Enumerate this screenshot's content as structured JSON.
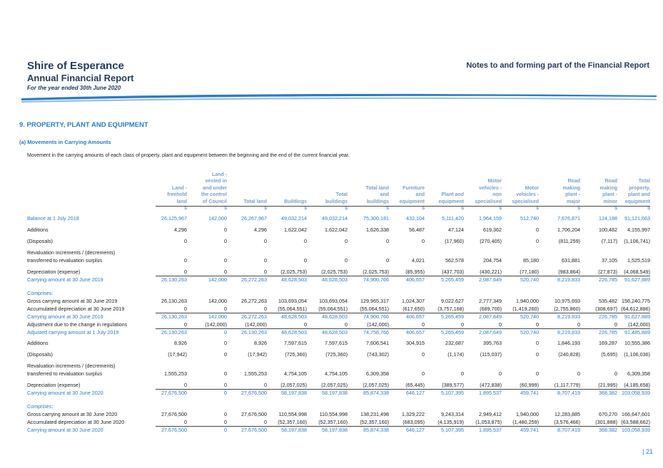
{
  "header": {
    "org": "Shire of Esperance",
    "report": "Annual Financial Report",
    "period": "For the year ended 30th June 2020",
    "notes_title": "Notes to and forming part of the Financial Report"
  },
  "section_title": "9. PROPERTY, PLANT AND EQUIPMENT",
  "subsection_title": "(a) Movements in Carrying Amounts",
  "intro_text": "Movement in the carrying amounts of each class of property, plant and equipment between the beginning and the end of the current financial year.",
  "page_number": "| 21",
  "table": {
    "columns": [
      [
        "Land -",
        "freehold",
        "land"
      ],
      [
        "Land -",
        "vested in",
        "and under",
        "the control",
        "of Council"
      ],
      [
        "Total land"
      ],
      [
        "Buildings"
      ],
      [
        "Total",
        "buildings"
      ],
      [
        "Total land",
        "and",
        "buildings"
      ],
      [
        "Furniture",
        "and",
        "equipment"
      ],
      [
        "Plant and",
        "equipment"
      ],
      [
        "Motor",
        "vehicles -",
        "non",
        "specialised"
      ],
      [
        "Motor",
        "vehicles -",
        "specialised"
      ],
      [
        "Road",
        "making",
        "plant -",
        "major"
      ],
      [
        "Road",
        "making",
        "plant -",
        "minor"
      ],
      [
        "Total",
        "property,",
        "plant and",
        "equipment"
      ]
    ],
    "currency": "$",
    "rows": [
      {
        "label": "Balance at 1 July 2018",
        "style": "blue",
        "values": [
          "26,125,967",
          "142,000",
          "26,267,967",
          "49,032,214",
          "49,032,214",
          "75,300,181",
          "432,104",
          "5,111,420",
          "1,964,159",
          "512,740",
          "7,676,871",
          "124,188",
          "91,121,663"
        ]
      },
      {
        "label": "Additions",
        "values": [
          "4,296",
          "0",
          "4,296",
          "1,622,042",
          "1,622,042",
          "1,626,338",
          "56,487",
          "47,124",
          "619,362",
          "0",
          "1,706,204",
          "100,482",
          "4,155,997"
        ]
      },
      {
        "label": "(Disposals)",
        "values": [
          "0",
          "0",
          "0",
          "0",
          "0",
          "0",
          "0",
          "(17,960)",
          "(270,405)",
          "0",
          "(811,259)",
          "(7,117)",
          "(1,106,741)"
        ]
      },
      {
        "label": "Revaluation increments / (decrements)",
        "values": []
      },
      {
        "label": "transferred to revaluation surplus",
        "values": [
          "0",
          "0",
          "0",
          "0",
          "0",
          "0",
          "4,021",
          "562,578",
          "204,754",
          "85,180",
          "631,881",
          "37,105",
          "1,525,519"
        ]
      },
      {
        "label": "Depreciation (expense)",
        "values": [
          "0",
          "0",
          "0",
          "(2,025,753)",
          "(2,025,753)",
          "(2,025,753)",
          "(85,955)",
          "(437,703)",
          "(430,221)",
          "(77,180)",
          "(983,864)",
          "(27,873)",
          "(4,068,549)"
        ]
      },
      {
        "label": "Carrying amount at 30 June 2019",
        "style": "blue",
        "values": [
          "26,130,263",
          "142,000",
          "26,272,263",
          "48,628,503",
          "48,628,503",
          "74,900,766",
          "406,657",
          "5,265,459",
          "2,087,649",
          "520,740",
          "8,219,833",
          "226,785",
          "91,627,889"
        ]
      },
      {
        "label": "Comprises:",
        "style": "blue",
        "values": []
      },
      {
        "label": "Gross carrying amount at 30 June 2019",
        "values": [
          "26,130,263",
          "142,000",
          "26,272,263",
          "103,693,054",
          "103,693,054",
          "129,965,317",
          "1,024,307",
          "9,022,627",
          "2,777,349",
          "1,940,000",
          "10,975,693",
          "535,482",
          "156,240,775"
        ]
      },
      {
        "label": "Accumulated depreciation at 30 June 2019",
        "values": [
          "0",
          "0",
          "0",
          "(55,064,551)",
          "(55,064,551)",
          "(55,064,551)",
          "(617,650)",
          "(3,757,168)",
          "(689,700)",
          "(1,419,260)",
          "(2,755,860)",
          "(308,697)",
          "(64,612,886)"
        ]
      },
      {
        "label": "Carrying amount at 30 June 2019",
        "style": "blue",
        "values": [
          "26,130,263",
          "142,000",
          "26,272,263",
          "48,628,503",
          "48,628,503",
          "74,900,766",
          "406,657",
          "5,265,459",
          "2,087,649",
          "520,740",
          "8,219,833",
          "226,785",
          "91,627,889"
        ]
      },
      {
        "label": "Adjustment due to the change in regulations",
        "values": [
          "0",
          "(142,000)",
          "(142,000)",
          "0",
          "0",
          "(142,000)",
          "0",
          "0",
          "0",
          "0",
          "0",
          "0",
          "(142,000)"
        ]
      },
      {
        "label": "Adjusted carrying amount at 1 July 2019",
        "style": "blue",
        "values": [
          "26,130,263",
          "0",
          "26,130,263",
          "48,628,503",
          "48,628,503",
          "74,758,766",
          "406,657",
          "5,265,459",
          "2,087,649",
          "520,740",
          "8,219,833",
          "226,785",
          "91,485,889"
        ]
      },
      {
        "label": "Additions",
        "values": [
          "8,926",
          "0",
          "8,926",
          "7,597,615",
          "7,597,615",
          "7,606,541",
          "304,915",
          "232,687",
          "395,763",
          "0",
          "1,846,193",
          "169,287",
          "10,555,386"
        ]
      },
      {
        "label": "(Disposals)",
        "values": [
          "(17,942)",
          "0",
          "(17,942)",
          "(725,360)",
          "(725,360)",
          "(743,302)",
          "0",
          "(1,174)",
          "(115,037)",
          "0",
          "(240,828)",
          "(5,695)",
          "(1,106,036)"
        ]
      },
      {
        "label": "Revaluation increments / (decrements)",
        "values": []
      },
      {
        "label": "transferred to revaluation surplus",
        "values": [
          "1,555,253",
          "0",
          "1,555,253",
          "4,754,105",
          "4,754,105",
          "6,309,358",
          "0",
          "0",
          "0",
          "0",
          "0",
          "0",
          "6,309,358"
        ]
      },
      {
        "label": "Depreciation (expense)",
        "values": [
          "0",
          "0",
          "0",
          "(2,057,025)",
          "(2,057,025)",
          "(2,057,025)",
          "(65,445)",
          "(389,577)",
          "(472,838)",
          "(60,999)",
          "(1,117,779)",
          "(21,995)",
          "(4,185,658)"
        ]
      },
      {
        "label": "Carrying amount at 30 June 2020",
        "style": "blue",
        "values": [
          "27,676,500",
          "0",
          "27,676,500",
          "58,197,838",
          "58,197,838",
          "85,874,338",
          "646,127",
          "5,107,395",
          "1,895,537",
          "459,741",
          "8,707,419",
          "368,382",
          "103,058,939"
        ]
      },
      {
        "label": "Comprises:",
        "style": "blue",
        "values": []
      },
      {
        "label": "Gross carrying amount at 30 June 2020",
        "values": [
          "27,676,500",
          "0",
          "27,676,500",
          "110,554,998",
          "110,554,998",
          "138,231,498",
          "1,329,222",
          "9,243,314",
          "2,949,412",
          "1,940,000",
          "12,283,885",
          "670,270",
          "166,647,601"
        ]
      },
      {
        "label": "Accumulated depreciation at 30 June 2020",
        "values": [
          "0",
          "0",
          "0",
          "(52,357,160)",
          "(52,357,160)",
          "(52,357,160)",
          "(683,095)",
          "(4,135,919)",
          "(1,053,875)",
          "(1,480,259)",
          "(3,576,466)",
          "(301,888)",
          "(63,588,662)"
        ]
      },
      {
        "label": "Carrying amount at 30 June 2020",
        "style": "blue",
        "values": [
          "27,676,500",
          "0",
          "27,676,500",
          "58,197,838",
          "58,197,838",
          "85,874,338",
          "646,127",
          "5,107,395",
          "1,895,537",
          "459,741",
          "8,707,419",
          "368,382",
          "103,058,939"
        ]
      }
    ]
  }
}
